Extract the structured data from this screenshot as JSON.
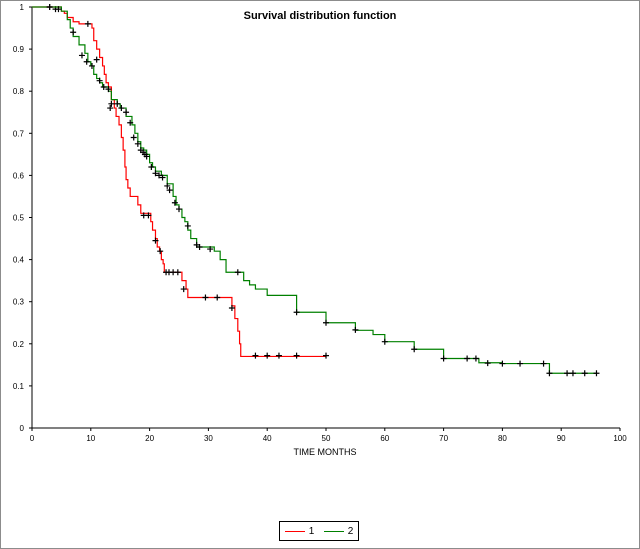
{
  "chart_data": {
    "type": "line",
    "title": "Survival distribution function",
    "xlabel": "TIME MONTHS",
    "ylabel": "",
    "xlim": [
      0,
      100
    ],
    "ylim": [
      0,
      1
    ],
    "xticks": [
      "0",
      "10",
      "20",
      "30",
      "40",
      "50",
      "60",
      "70",
      "80",
      "90",
      "100"
    ],
    "yticks": [
      "0",
      "0.1",
      "0.2",
      "0.3",
      "0.4",
      "0.5",
      "0.6",
      "0.7",
      "0.8",
      "0.9",
      "1"
    ],
    "grid": false,
    "legend_position": "bottom",
    "series": [
      {
        "name": "1",
        "color": "#ff0000",
        "step": [
          [
            0,
            1
          ],
          [
            5,
            0.99
          ],
          [
            5.5,
            0.985
          ],
          [
            6,
            0.975
          ],
          [
            7,
            0.965
          ],
          [
            8,
            0.96
          ],
          [
            10.2,
            0.95
          ],
          [
            10.5,
            0.92
          ],
          [
            11,
            0.9
          ],
          [
            11.5,
            0.88
          ],
          [
            12,
            0.86
          ],
          [
            12.3,
            0.84
          ],
          [
            12.6,
            0.82
          ],
          [
            13,
            0.81
          ],
          [
            13.5,
            0.78
          ],
          [
            14,
            0.76
          ],
          [
            14.3,
            0.74
          ],
          [
            14.8,
            0.72
          ],
          [
            15.2,
            0.69
          ],
          [
            15.5,
            0.66
          ],
          [
            15.8,
            0.62
          ],
          [
            16,
            0.59
          ],
          [
            16.3,
            0.57
          ],
          [
            16.7,
            0.55
          ],
          [
            18,
            0.53
          ],
          [
            18.5,
            0.51
          ],
          [
            20.2,
            0.49
          ],
          [
            20.5,
            0.47
          ],
          [
            21,
            0.45
          ],
          [
            21.3,
            0.43
          ],
          [
            21.7,
            0.42
          ],
          [
            22,
            0.4
          ],
          [
            22.3,
            0.39
          ],
          [
            22.5,
            0.37
          ],
          [
            25.5,
            0.35
          ],
          [
            26.2,
            0.33
          ],
          [
            26.5,
            0.31
          ],
          [
            34,
            0.29
          ],
          [
            34.5,
            0.26
          ],
          [
            35,
            0.23
          ],
          [
            35.3,
            0.2
          ],
          [
            35.5,
            0.17
          ],
          [
            50,
            0.17
          ]
        ],
        "censored": [
          [
            3,
            1
          ],
          [
            4,
            0.995
          ],
          [
            9.5,
            0.96
          ],
          [
            13.5,
            0.77
          ],
          [
            19,
            0.505
          ],
          [
            19.8,
            0.505
          ],
          [
            21,
            0.445
          ],
          [
            21.8,
            0.42
          ],
          [
            22.8,
            0.37
          ],
          [
            23.3,
            0.37
          ],
          [
            24,
            0.37
          ],
          [
            24.8,
            0.37
          ],
          [
            25.8,
            0.33
          ],
          [
            29.5,
            0.31
          ],
          [
            31.5,
            0.31
          ],
          [
            34,
            0.285
          ],
          [
            38,
            0.172
          ],
          [
            40,
            0.172
          ],
          [
            42,
            0.172
          ],
          [
            45,
            0.172
          ],
          [
            50,
            0.172
          ]
        ]
      },
      {
        "name": "2",
        "color": "#008000",
        "step": [
          [
            0,
            1
          ],
          [
            5,
            0.99
          ],
          [
            6,
            0.97
          ],
          [
            6.5,
            0.95
          ],
          [
            7,
            0.93
          ],
          [
            8,
            0.91
          ],
          [
            9,
            0.89
          ],
          [
            9.5,
            0.87
          ],
          [
            10,
            0.86
          ],
          [
            10.5,
            0.84
          ],
          [
            11,
            0.83
          ],
          [
            11.5,
            0.82
          ],
          [
            12,
            0.81
          ],
          [
            13,
            0.8
          ],
          [
            13.5,
            0.78
          ],
          [
            14.5,
            0.77
          ],
          [
            15,
            0.76
          ],
          [
            16,
            0.74
          ],
          [
            17,
            0.72
          ],
          [
            17.5,
            0.7
          ],
          [
            18,
            0.68
          ],
          [
            18.5,
            0.665
          ],
          [
            19,
            0.66
          ],
          [
            19.5,
            0.65
          ],
          [
            20,
            0.63
          ],
          [
            20.5,
            0.62
          ],
          [
            21,
            0.61
          ],
          [
            22,
            0.6
          ],
          [
            23,
            0.58
          ],
          [
            24,
            0.55
          ],
          [
            24.5,
            0.53
          ],
          [
            25,
            0.52
          ],
          [
            25.5,
            0.5
          ],
          [
            26,
            0.49
          ],
          [
            26.5,
            0.47
          ],
          [
            27,
            0.45
          ],
          [
            28,
            0.43
          ],
          [
            31,
            0.42
          ],
          [
            32,
            0.4
          ],
          [
            33,
            0.37
          ],
          [
            36,
            0.35
          ],
          [
            37,
            0.34
          ],
          [
            38,
            0.33
          ],
          [
            40,
            0.315
          ],
          [
            45,
            0.275
          ],
          [
            50,
            0.25
          ],
          [
            55,
            0.232
          ],
          [
            58,
            0.222
          ],
          [
            60,
            0.205
          ],
          [
            65,
            0.187
          ],
          [
            70,
            0.165
          ],
          [
            76,
            0.155
          ],
          [
            80,
            0.153
          ],
          [
            88,
            0.13
          ],
          [
            96,
            0.13
          ]
        ],
        "censored": [
          [
            3,
            1
          ],
          [
            4.5,
            0.995
          ],
          [
            7,
            0.94
          ],
          [
            8.5,
            0.885
          ],
          [
            9.3,
            0.87
          ],
          [
            10.2,
            0.86
          ],
          [
            11,
            0.875
          ],
          [
            11.5,
            0.825
          ],
          [
            12.2,
            0.81
          ],
          [
            13,
            0.805
          ],
          [
            13.3,
            0.76
          ],
          [
            14.5,
            0.77
          ],
          [
            15.2,
            0.76
          ],
          [
            16,
            0.75
          ],
          [
            16.7,
            0.725
          ],
          [
            17.3,
            0.69
          ],
          [
            18,
            0.675
          ],
          [
            18.5,
            0.66
          ],
          [
            18.9,
            0.655
          ],
          [
            19.2,
            0.65
          ],
          [
            19.5,
            0.645
          ],
          [
            20.3,
            0.62
          ],
          [
            21,
            0.605
          ],
          [
            21.6,
            0.6
          ],
          [
            22.2,
            0.595
          ],
          [
            23,
            0.575
          ],
          [
            23.4,
            0.565
          ],
          [
            24.3,
            0.535
          ],
          [
            25,
            0.52
          ],
          [
            26.5,
            0.48
          ],
          [
            28,
            0.435
          ],
          [
            28.5,
            0.43
          ],
          [
            30.3,
            0.425
          ],
          [
            35,
            0.37
          ],
          [
            45,
            0.275
          ],
          [
            50,
            0.25
          ],
          [
            55,
            0.233
          ],
          [
            60,
            0.205
          ],
          [
            65,
            0.187
          ],
          [
            70,
            0.165
          ],
          [
            74,
            0.165
          ],
          [
            75.5,
            0.165
          ],
          [
            77.5,
            0.154
          ],
          [
            80,
            0.153
          ],
          [
            83,
            0.153
          ],
          [
            87,
            0.153
          ],
          [
            88,
            0.13
          ],
          [
            91,
            0.13
          ],
          [
            92,
            0.13
          ],
          [
            94,
            0.13
          ],
          [
            96,
            0.13
          ]
        ]
      }
    ]
  }
}
